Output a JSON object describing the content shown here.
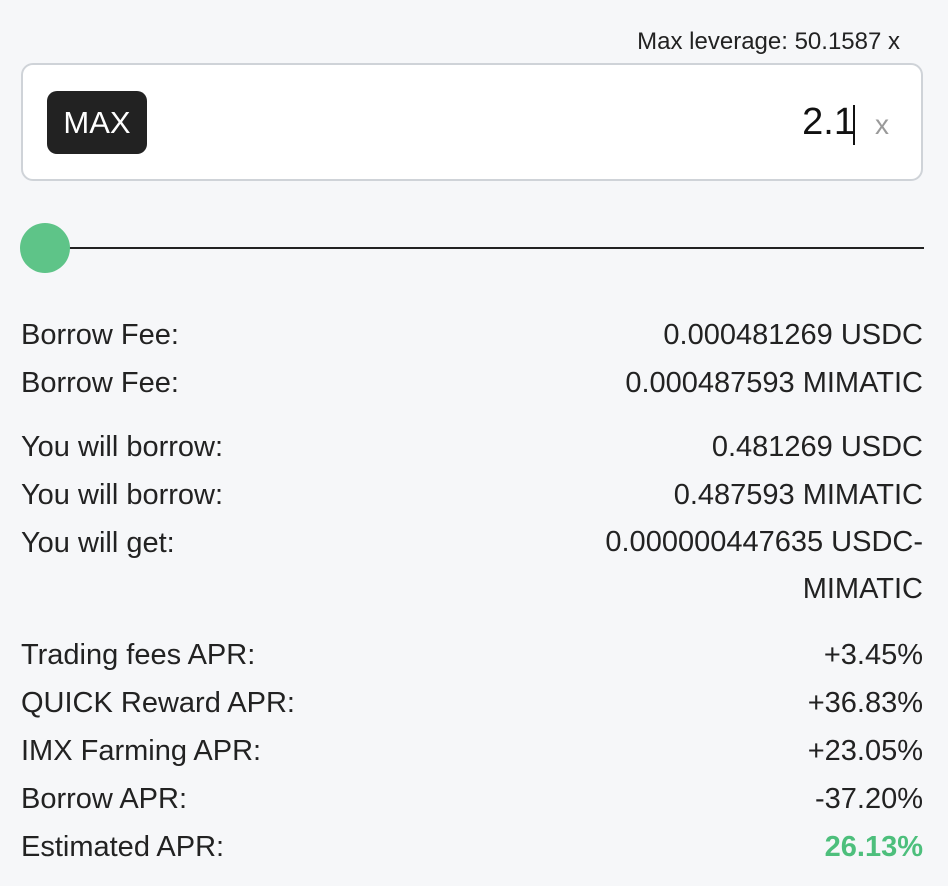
{
  "max_leverage_label": "Max leverage: 50.1587 x",
  "leverage_input": {
    "max_button": "MAX",
    "value": "2.1",
    "unit": "x"
  },
  "slider": {
    "value_fraction": 0.0
  },
  "fees": [
    {
      "label": "Borrow Fee:",
      "value": "0.000481269 USDC"
    },
    {
      "label": "Borrow Fee:",
      "value": "0.000487593 MIMATIC"
    }
  ],
  "borrow": [
    {
      "label": "You will borrow:",
      "value": "0.481269 USDC"
    },
    {
      "label": "You will borrow:",
      "value": "0.487593 MIMATIC"
    }
  ],
  "get": {
    "label": "You will get:",
    "value": "0.000000447635 USDC-MIMATIC"
  },
  "apr": [
    {
      "label": "Trading fees APR:",
      "value": "+3.45%"
    },
    {
      "label": "QUICK Reward APR:",
      "value": "+36.83%"
    },
    {
      "label": "IMX Farming APR:",
      "value": "+23.05%"
    },
    {
      "label": "Borrow APR:",
      "value": "-37.20%"
    },
    {
      "label": "Estimated APR:",
      "value": "26.13%"
    }
  ],
  "colors": {
    "accent_green": "#4dbf7c",
    "slider_thumb": "#5ec488"
  }
}
